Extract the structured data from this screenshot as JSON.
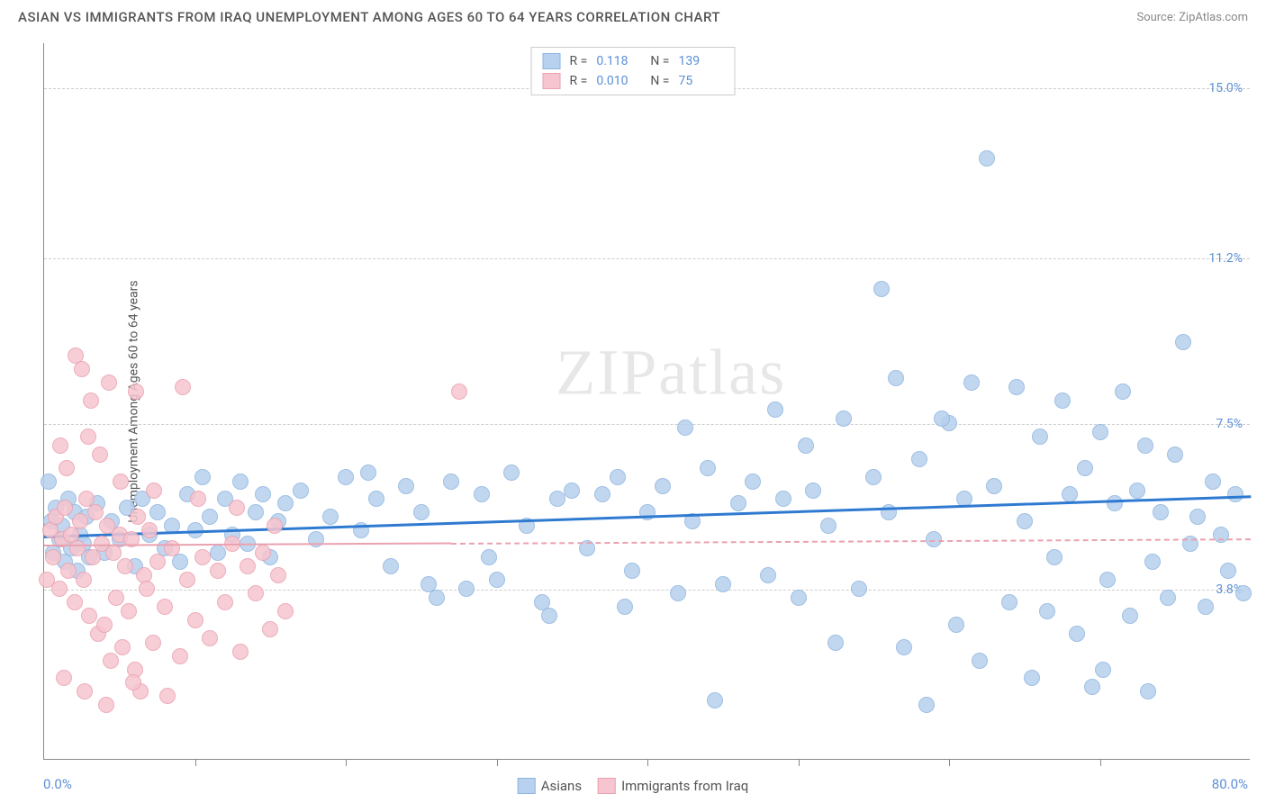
{
  "title": "ASIAN VS IMMIGRANTS FROM IRAQ UNEMPLOYMENT AMONG AGES 60 TO 64 YEARS CORRELATION CHART",
  "source": "Source: ZipAtlas.com",
  "watermark_a": "ZIP",
  "watermark_b": "atlas",
  "chart": {
    "type": "scatter",
    "y_axis_label": "Unemployment Among Ages 60 to 64 years",
    "x_min": 0,
    "x_max": 80,
    "x_min_label": "0.0%",
    "x_max_label": "80.0%",
    "y_min": 0,
    "y_max": 16,
    "y_ticks": [
      {
        "v": 3.8,
        "label": "3.8%"
      },
      {
        "v": 7.5,
        "label": "7.5%"
      },
      {
        "v": 11.2,
        "label": "11.2%"
      },
      {
        "v": 15.0,
        "label": "15.0%"
      }
    ],
    "x_tick_positions": [
      10,
      20,
      30,
      40,
      50,
      60,
      70
    ],
    "grid_color": "#cccccc",
    "background_color": "#ffffff",
    "axis_color": "#888888",
    "tick_label_color": "#5b8fd6",
    "label_fontsize": 14
  },
  "series": [
    {
      "name": "Asians",
      "marker_color": "#b7d1ee",
      "marker_border": "#8fb5df",
      "marker_radius": 9,
      "trend_color": "#2f7ad1",
      "trend_dash": "solid",
      "R": "0.118",
      "N": "139",
      "trend": {
        "x1": 0,
        "y1": 5.0,
        "x2": 80,
        "y2": 5.9,
        "extend": 80
      },
      "points": [
        [
          0.3,
          6.2
        ],
        [
          0.5,
          5.3
        ],
        [
          0.6,
          4.6
        ],
        [
          0.8,
          5.6
        ],
        [
          1.0,
          4.9
        ],
        [
          1.2,
          5.2
        ],
        [
          1.4,
          4.4
        ],
        [
          1.6,
          5.8
        ],
        [
          1.8,
          4.7
        ],
        [
          2.0,
          5.5
        ],
        [
          2.2,
          4.2
        ],
        [
          2.4,
          5.0
        ],
        [
          2.6,
          4.8
        ],
        [
          2.8,
          5.4
        ],
        [
          3.0,
          4.5
        ],
        [
          3.5,
          5.7
        ],
        [
          4.0,
          4.6
        ],
        [
          4.5,
          5.3
        ],
        [
          5.0,
          4.9
        ],
        [
          5.5,
          5.6
        ],
        [
          6.0,
          4.3
        ],
        [
          6.5,
          5.8
        ],
        [
          7.0,
          5.0
        ],
        [
          7.5,
          5.5
        ],
        [
          8.0,
          4.7
        ],
        [
          8.5,
          5.2
        ],
        [
          9.0,
          4.4
        ],
        [
          9.5,
          5.9
        ],
        [
          10.0,
          5.1
        ],
        [
          10.5,
          6.3
        ],
        [
          11,
          5.4
        ],
        [
          11.5,
          4.6
        ],
        [
          12,
          5.8
        ],
        [
          12.5,
          5.0
        ],
        [
          13,
          6.2
        ],
        [
          13.5,
          4.8
        ],
        [
          14,
          5.5
        ],
        [
          14.5,
          5.9
        ],
        [
          15,
          4.5
        ],
        [
          15.5,
          5.3
        ],
        [
          16,
          5.7
        ],
        [
          17,
          6.0
        ],
        [
          18,
          4.9
        ],
        [
          19,
          5.4
        ],
        [
          20,
          6.3
        ],
        [
          21,
          5.1
        ],
        [
          22,
          5.8
        ],
        [
          23,
          4.3
        ],
        [
          24,
          6.1
        ],
        [
          25,
          5.5
        ],
        [
          26,
          3.6
        ],
        [
          27,
          6.2
        ],
        [
          28,
          3.8
        ],
        [
          29,
          5.9
        ],
        [
          30,
          4.0
        ],
        [
          31,
          6.4
        ],
        [
          32,
          5.2
        ],
        [
          33,
          3.5
        ],
        [
          34,
          5.8
        ],
        [
          35,
          6.0
        ],
        [
          36,
          4.7
        ],
        [
          37,
          5.9
        ],
        [
          38,
          6.3
        ],
        [
          39,
          4.2
        ],
        [
          40,
          5.5
        ],
        [
          41,
          6.1
        ],
        [
          42,
          3.7
        ],
        [
          43,
          5.3
        ],
        [
          44,
          6.5
        ],
        [
          45,
          3.9
        ],
        [
          46,
          5.7
        ],
        [
          47,
          6.2
        ],
        [
          48,
          4.1
        ],
        [
          49,
          5.8
        ],
        [
          50,
          3.6
        ],
        [
          51,
          6.0
        ],
        [
          52,
          5.2
        ],
        [
          53,
          7.6
        ],
        [
          54,
          3.8
        ],
        [
          55,
          6.3
        ],
        [
          55.5,
          10.5
        ],
        [
          56,
          5.5
        ],
        [
          57,
          2.5
        ],
        [
          58,
          6.7
        ],
        [
          58.5,
          1.2
        ],
        [
          59,
          4.9
        ],
        [
          60,
          7.5
        ],
        [
          60.5,
          3.0
        ],
        [
          61,
          5.8
        ],
        [
          62,
          2.2
        ],
        [
          62.5,
          13.4
        ],
        [
          63,
          6.1
        ],
        [
          64,
          3.5
        ],
        [
          64.5,
          8.3
        ],
        [
          65,
          5.3
        ],
        [
          65.5,
          1.8
        ],
        [
          66,
          7.2
        ],
        [
          67,
          4.5
        ],
        [
          67.5,
          8.0
        ],
        [
          68,
          5.9
        ],
        [
          68.5,
          2.8
        ],
        [
          69,
          6.5
        ],
        [
          69.5,
          1.6
        ],
        [
          70,
          7.3
        ],
        [
          70.5,
          4.0
        ],
        [
          71,
          5.7
        ],
        [
          71.5,
          8.2
        ],
        [
          72,
          3.2
        ],
        [
          72.5,
          6.0
        ],
        [
          73,
          7.0
        ],
        [
          73.5,
          4.4
        ],
        [
          74,
          5.5
        ],
        [
          74.5,
          3.6
        ],
        [
          75,
          6.8
        ],
        [
          75.5,
          9.3
        ],
        [
          76,
          4.8
        ],
        [
          76.5,
          5.4
        ],
        [
          77,
          3.4
        ],
        [
          77.5,
          6.2
        ],
        [
          78,
          5.0
        ],
        [
          78.5,
          4.2
        ],
        [
          79,
          5.9
        ],
        [
          79.5,
          3.7
        ],
        [
          44.5,
          1.3
        ],
        [
          52.5,
          2.6
        ],
        [
          56.5,
          8.5
        ],
        [
          48.5,
          7.8
        ],
        [
          61.5,
          8.4
        ],
        [
          66.5,
          3.3
        ],
        [
          70.2,
          2.0
        ],
        [
          73.2,
          1.5
        ],
        [
          59.5,
          7.6
        ],
        [
          50.5,
          7.0
        ],
        [
          42.5,
          7.4
        ],
        [
          38.5,
          3.4
        ],
        [
          33.5,
          3.2
        ],
        [
          29.5,
          4.5
        ],
        [
          25.5,
          3.9
        ],
        [
          21.5,
          6.4
        ]
      ]
    },
    {
      "name": "Immigrants from Iraq",
      "marker_color": "#f6c5cf",
      "marker_border": "#eaa1b0",
      "marker_radius": 9,
      "trend_color": "#eaa1b0",
      "trend_dash": "dashed",
      "R": "0.010",
      "N": "75",
      "trend": {
        "x1": 0,
        "y1": 4.8,
        "x2": 27,
        "y2": 4.85,
        "extend": 80
      },
      "points": [
        [
          0.2,
          4.0
        ],
        [
          0.4,
          5.1
        ],
        [
          0.6,
          4.5
        ],
        [
          0.8,
          5.4
        ],
        [
          1.0,
          3.8
        ],
        [
          1.2,
          4.9
        ],
        [
          1.4,
          5.6
        ],
        [
          1.6,
          4.2
        ],
        [
          1.8,
          5.0
        ],
        [
          2.0,
          3.5
        ],
        [
          2.2,
          4.7
        ],
        [
          2.4,
          5.3
        ],
        [
          2.6,
          4.0
        ],
        [
          2.8,
          5.8
        ],
        [
          3.0,
          3.2
        ],
        [
          3.2,
          4.5
        ],
        [
          3.4,
          5.5
        ],
        [
          3.6,
          2.8
        ],
        [
          3.8,
          4.8
        ],
        [
          4.0,
          3.0
        ],
        [
          4.2,
          5.2
        ],
        [
          4.4,
          2.2
        ],
        [
          4.6,
          4.6
        ],
        [
          4.8,
          3.6
        ],
        [
          5.0,
          5.0
        ],
        [
          5.2,
          2.5
        ],
        [
          5.4,
          4.3
        ],
        [
          5.6,
          3.3
        ],
        [
          5.8,
          4.9
        ],
        [
          6.0,
          2.0
        ],
        [
          6.2,
          5.4
        ],
        [
          6.4,
          1.5
        ],
        [
          6.6,
          4.1
        ],
        [
          6.8,
          3.8
        ],
        [
          7.0,
          5.1
        ],
        [
          7.2,
          2.6
        ],
        [
          7.5,
          4.4
        ],
        [
          8.0,
          3.4
        ],
        [
          8.5,
          4.7
        ],
        [
          9.0,
          2.3
        ],
        [
          9.5,
          4.0
        ],
        [
          10.0,
          3.1
        ],
        [
          10.5,
          4.5
        ],
        [
          11.0,
          2.7
        ],
        [
          11.5,
          4.2
        ],
        [
          12.0,
          3.5
        ],
        [
          12.5,
          4.8
        ],
        [
          13.0,
          2.4
        ],
        [
          13.5,
          4.3
        ],
        [
          14.0,
          3.7
        ],
        [
          14.5,
          4.6
        ],
        [
          15.0,
          2.9
        ],
        [
          15.5,
          4.1
        ],
        [
          16.0,
          3.3
        ],
        [
          2.1,
          9.0
        ],
        [
          2.5,
          8.7
        ],
        [
          3.1,
          8.0
        ],
        [
          4.3,
          8.4
        ],
        [
          6.1,
          8.2
        ],
        [
          9.2,
          8.3
        ],
        [
          1.1,
          7.0
        ],
        [
          1.5,
          6.5
        ],
        [
          2.9,
          7.2
        ],
        [
          3.7,
          6.8
        ],
        [
          5.1,
          6.2
        ],
        [
          7.3,
          6.0
        ],
        [
          10.2,
          5.8
        ],
        [
          12.8,
          5.6
        ],
        [
          15.3,
          5.2
        ],
        [
          1.3,
          1.8
        ],
        [
          2.7,
          1.5
        ],
        [
          4.1,
          1.2
        ],
        [
          5.9,
          1.7
        ],
        [
          8.2,
          1.4
        ],
        [
          27.5,
          8.2
        ]
      ]
    }
  ],
  "legend_top": {
    "r_label": "R =",
    "n_label": "N ="
  },
  "legend_bottom_labels": [
    "Asians",
    "Immigrants from Iraq"
  ]
}
